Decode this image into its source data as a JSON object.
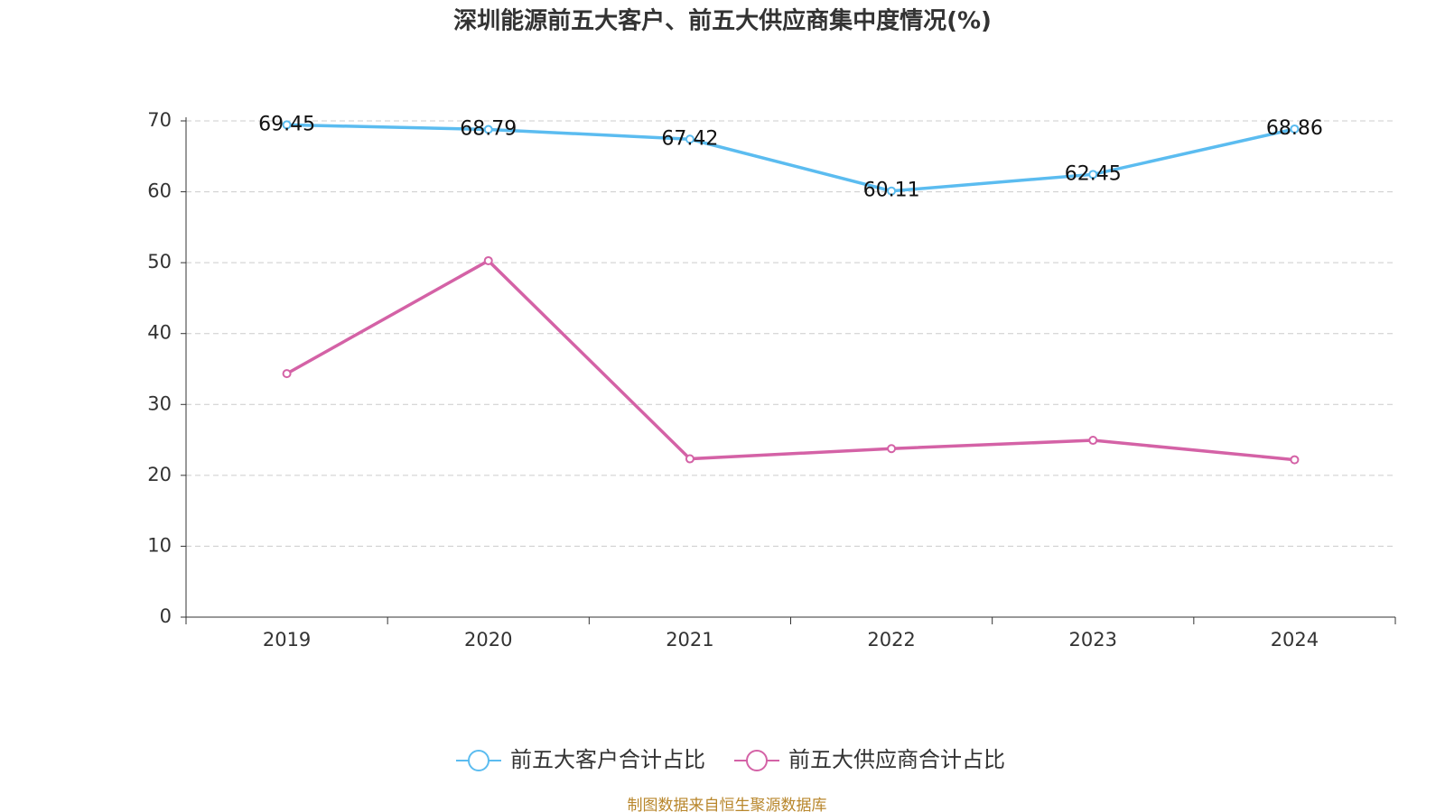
{
  "chart_data": {
    "type": "line",
    "title": "深圳能源前五大客户、前五大供应商集中度情况(%)",
    "categories": [
      "2019",
      "2020",
      "2021",
      "2022",
      "2023",
      "2024"
    ],
    "series": [
      {
        "name": "前五大客户合计占比",
        "color": "#5bbcf0",
        "values": [
          69.45,
          68.79,
          67.42,
          60.11,
          62.45,
          68.86
        ],
        "show_labels": true
      },
      {
        "name": "前五大供应商合计占比",
        "color": "#d462a6",
        "values": [
          34.35,
          50.28,
          22.33,
          23.77,
          24.94,
          22.2
        ],
        "show_labels": false
      }
    ],
    "ylim": [
      0,
      70
    ],
    "yticks": [
      0,
      10,
      20,
      30,
      40,
      50,
      60,
      70
    ],
    "grid": true,
    "legend": "bottom",
    "source": "制图数据来自恒生聚源数据库"
  }
}
